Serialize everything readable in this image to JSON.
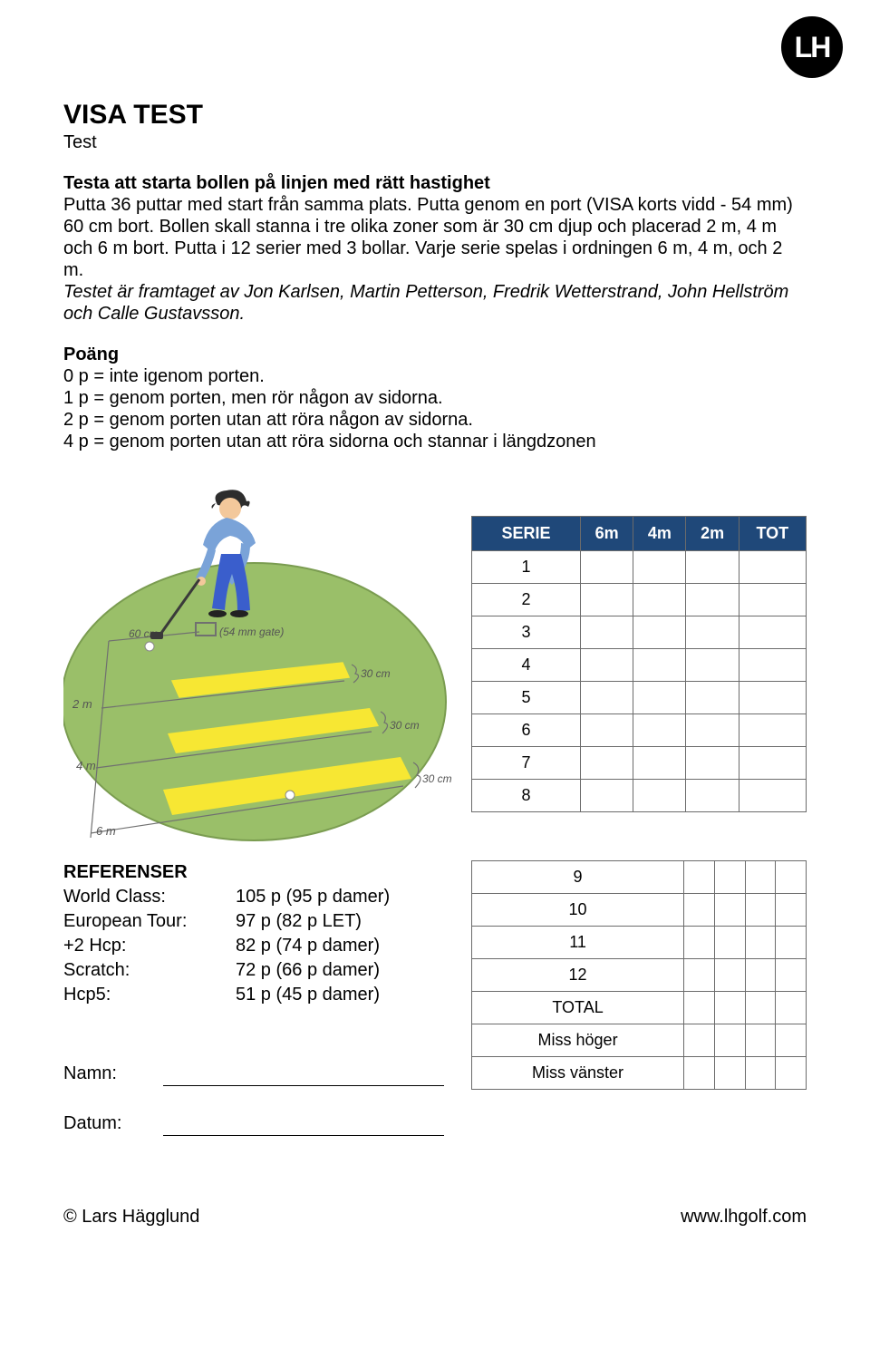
{
  "logo_text": "LH",
  "title": "VISA TEST",
  "subtitle": "Test",
  "test_heading": "Testa att starta bollen på linjen med rätt hastighet",
  "body1": "Putta 36 puttar med start från samma plats. Putta genom en port (VISA korts vidd - 54 mm) 60 cm bort. Bollen skall stanna i tre olika zoner som är 30 cm djup och placerad 2 m, 4 m och 6 m bort. Putta i 12 serier med 3 bollar. Varje serie spelas i ordningen 6 m, 4 m, och 2 m.",
  "body_italic": "Testet är framtaget av Jon Karlsen, Martin Petterson, Fredrik Wetterstrand, John Hellström och Calle Gustavsson.",
  "poang_heading": "Poäng",
  "poang_lines": [
    "0 p = inte igenom porten.",
    "1 p = genom porten, men rör någon av sidorna.",
    "2 p = genom porten utan att röra någon av sidorna.",
    "4 p = genom porten utan att röra sidorna och stannar i längdzonen"
  ],
  "diagram": {
    "green_fill": "#9abf69",
    "green_stroke": "#7a9c50",
    "line_color": "#707070",
    "zone_color": "#f7e733",
    "label_color": "#555555",
    "labels": {
      "d60": "60 cm",
      "gate": "(54 mm gate)",
      "d30a": "30 cm",
      "d30b": "30 cm",
      "d30c": "30 cm",
      "m2": "2 m",
      "m4": "4 m",
      "m6": "6 m"
    },
    "golfer": {
      "skin": "#f3c89b",
      "hair": "#2d2d2d",
      "shirt": "#7aa3d8",
      "pants": "#3a5ecc",
      "club": "#3a3a3a"
    }
  },
  "score_table": {
    "header_bg": "#1f4879",
    "header_fg": "#ffffff",
    "cell_border": "#6b6b6b",
    "columns": [
      "SERIE",
      "6m",
      "4m",
      "2m",
      "TOT"
    ],
    "rows": [
      "1",
      "2",
      "3",
      "4",
      "5",
      "6",
      "7",
      "8",
      "9",
      "10",
      "11",
      "12",
      "TOTAL",
      "Miss höger",
      "Miss vänster"
    ]
  },
  "refs_heading": "REFERENSER",
  "refs": [
    {
      "label": "World Class:",
      "value": "105 p (95 p damer)"
    },
    {
      "label": "European Tour:",
      "value": "97 p (82 p LET)"
    },
    {
      "label": "+2 Hcp:",
      "value": "82 p (74 p damer)"
    },
    {
      "label": "Scratch:",
      "value": "72 p (66 p damer)"
    },
    {
      "label": "Hcp5:",
      "value": "51 p (45 p damer)"
    }
  ],
  "field_name_label": "Namn:",
  "field_date_label": "Datum:",
  "footer_left": "© Lars Hägglund",
  "footer_right": "www.lhgolf.com"
}
